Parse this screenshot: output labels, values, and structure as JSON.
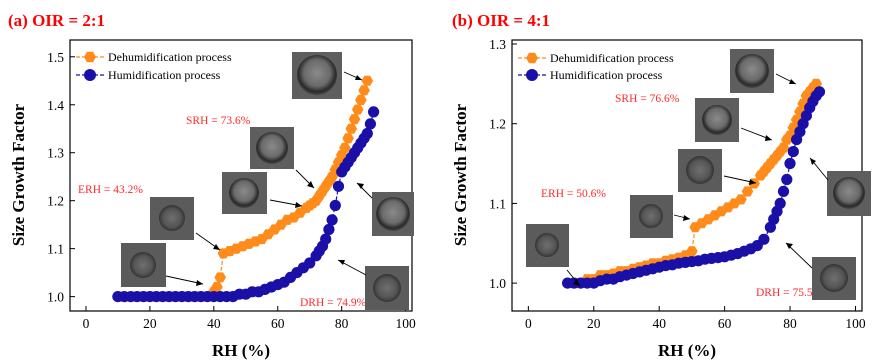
{
  "chart_data": [
    {
      "type": "scatter",
      "panel_title": "(a) OIR = 2:1",
      "xlabel": "RH (%)",
      "ylabel": "Size Growth Factor",
      "xlim": [
        -5,
        102
      ],
      "ylim": [
        0.97,
        1.535
      ],
      "xticks": [
        0,
        20,
        40,
        60,
        80,
        100
      ],
      "yticks": [
        1.0,
        1.1,
        1.2,
        1.3,
        1.4,
        1.5
      ],
      "ytick_labels": [
        "1.0",
        "1.1",
        "1.2",
        "1.3",
        "1.4",
        "1.5"
      ],
      "legend": {
        "placement": "top-left",
        "entries": [
          "Dehumidification process",
          "Humidification process"
        ]
      },
      "annotations": [
        "SRH = 73.6%",
        "ERH = 43.2%",
        "DRH = 74.9%"
      ],
      "series": [
        {
          "name": "Dehumidification process",
          "marker": "hexagon",
          "color": "#ff8c1a",
          "x": [
            10,
            12,
            14,
            16,
            18,
            20,
            22,
            24,
            26,
            28,
            30,
            32,
            34,
            36,
            38,
            40,
            41,
            42,
            43,
            45,
            47,
            49,
            51,
            53,
            55,
            57,
            59,
            61,
            63,
            65,
            67,
            69,
            70,
            71,
            72,
            73,
            74,
            75,
            76,
            77,
            78,
            79,
            80,
            81,
            82,
            83,
            84,
            85,
            86,
            87,
            88
          ],
          "y": [
            1.0,
            1.0,
            1.0,
            1.0,
            1.0,
            1.0,
            1.0,
            1.0,
            1.0,
            1.0,
            1.0,
            1.0,
            1.0,
            1.0,
            1.0,
            1.01,
            1.02,
            1.04,
            1.09,
            1.095,
            1.1,
            1.105,
            1.11,
            1.115,
            1.12,
            1.13,
            1.14,
            1.15,
            1.16,
            1.165,
            1.175,
            1.185,
            1.19,
            1.195,
            1.2,
            1.21,
            1.22,
            1.23,
            1.24,
            1.25,
            1.265,
            1.28,
            1.295,
            1.31,
            1.33,
            1.35,
            1.37,
            1.39,
            1.41,
            1.43,
            1.45
          ]
        },
        {
          "name": "Humidification process",
          "marker": "circle",
          "color": "#1a0fa6",
          "x": [
            10,
            12,
            14,
            16,
            18,
            20,
            22,
            24,
            26,
            28,
            30,
            32,
            34,
            36,
            38,
            40,
            42,
            44,
            46,
            48,
            50,
            52,
            54,
            56,
            58,
            60,
            62,
            64,
            66,
            68,
            70,
            72,
            73,
            74,
            75,
            76,
            77,
            78,
            79,
            80,
            81,
            82,
            83,
            84,
            85,
            86,
            87,
            88,
            89,
            90
          ],
          "y": [
            1.0,
            1.0,
            1.0,
            1.0,
            1.0,
            1.0,
            1.0,
            1.0,
            1.0,
            1.0,
            1.0,
            1.0,
            1.0,
            1.0,
            1.0,
            1.0,
            1.0,
            1.0,
            1.0,
            1.005,
            1.005,
            1.01,
            1.01,
            1.015,
            1.02,
            1.025,
            1.03,
            1.04,
            1.05,
            1.06,
            1.07,
            1.085,
            1.095,
            1.105,
            1.12,
            1.14,
            1.16,
            1.19,
            1.23,
            1.26,
            1.27,
            1.28,
            1.29,
            1.3,
            1.31,
            1.32,
            1.33,
            1.34,
            1.36,
            1.385
          ]
        }
      ]
    },
    {
      "type": "scatter",
      "panel_title": "(b) OIR = 4:1",
      "xlabel": "RH (%)",
      "ylabel": "Size Growth Factor",
      "xlim": [
        -5,
        102
      ],
      "ylim": [
        0.965,
        1.305
      ],
      "xticks": [
        0,
        20,
        40,
        60,
        80,
        100
      ],
      "yticks": [
        1.0,
        1.1,
        1.2,
        1.3
      ],
      "ytick_labels": [
        "1.0",
        "1.1",
        "1.2",
        "1.3"
      ],
      "legend": {
        "placement": "top-left",
        "entries": [
          "Dehumidification process",
          "Humidification process"
        ]
      },
      "annotations": [
        "SRH = 76.6%",
        "ERH = 50.6%",
        "DRH = 75.5%"
      ],
      "series": [
        {
          "name": "Dehumidification process",
          "marker": "hexagon",
          "color": "#ff8c1a",
          "x": [
            12,
            14,
            16,
            18,
            20,
            22,
            24,
            26,
            28,
            30,
            32,
            34,
            36,
            38,
            40,
            42,
            44,
            46,
            48,
            50,
            51,
            53,
            55,
            57,
            59,
            61,
            63,
            65,
            67,
            69,
            71,
            72,
            73,
            74,
            75,
            76,
            77,
            78,
            79,
            80,
            81,
            82,
            83,
            84,
            85,
            86,
            87,
            88
          ],
          "y": [
            1.0,
            1.0,
            1.0,
            1.005,
            1.005,
            1.01,
            1.01,
            1.012,
            1.015,
            1.015,
            1.018,
            1.02,
            1.022,
            1.025,
            1.025,
            1.028,
            1.03,
            1.032,
            1.035,
            1.04,
            1.07,
            1.075,
            1.08,
            1.085,
            1.09,
            1.095,
            1.1,
            1.105,
            1.115,
            1.125,
            1.135,
            1.14,
            1.145,
            1.15,
            1.155,
            1.16,
            1.165,
            1.17,
            1.18,
            1.185,
            1.195,
            1.205,
            1.215,
            1.225,
            1.235,
            1.24,
            1.245,
            1.25
          ]
        },
        {
          "name": "Humidification process",
          "marker": "circle",
          "color": "#1a0fa6",
          "x": [
            12,
            14,
            16,
            18,
            20,
            22,
            24,
            26,
            28,
            30,
            32,
            34,
            36,
            38,
            40,
            42,
            44,
            46,
            48,
            50,
            52,
            54,
            56,
            58,
            60,
            62,
            64,
            66,
            68,
            70,
            72,
            74,
            75,
            76,
            77,
            78,
            79,
            80,
            81,
            82,
            83,
            84,
            85,
            86,
            87,
            88,
            89
          ],
          "y": [
            1.0,
            1.0,
            1.0,
            1.0,
            1.0,
            1.003,
            1.005,
            1.005,
            1.008,
            1.01,
            1.012,
            1.014,
            1.016,
            1.018,
            1.02,
            1.022,
            1.023,
            1.025,
            1.026,
            1.027,
            1.028,
            1.03,
            1.031,
            1.032,
            1.033,
            1.035,
            1.037,
            1.04,
            1.043,
            1.047,
            1.055,
            1.07,
            1.08,
            1.09,
            1.1,
            1.115,
            1.13,
            1.15,
            1.165,
            1.18,
            1.19,
            1.2,
            1.21,
            1.22,
            1.228,
            1.235,
            1.24
          ]
        }
      ]
    }
  ]
}
